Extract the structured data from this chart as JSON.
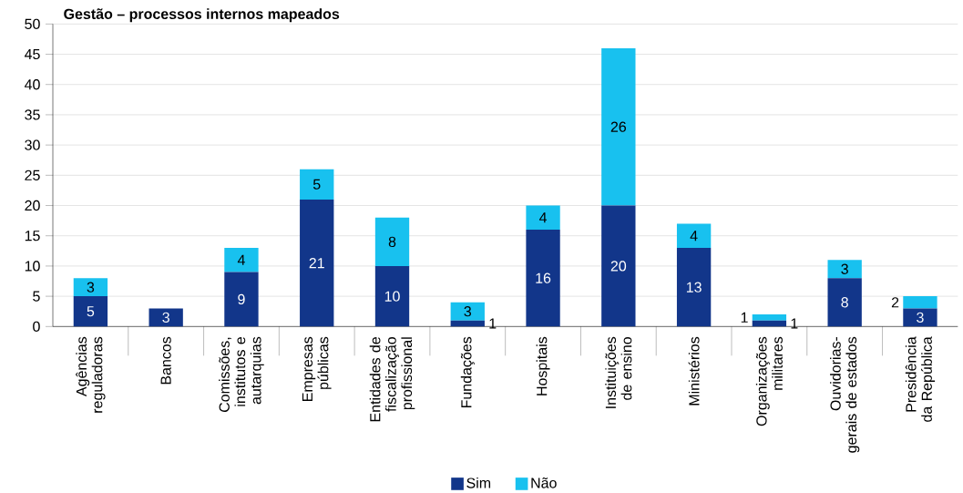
{
  "chart_data": {
    "type": "bar",
    "title": "Gestão – processos internos mapeados",
    "categories": [
      "Agências reguladoras",
      "Bancos",
      "Comissões, institutos e autarquias",
      "Empresas públicas",
      "Entidades de fiscalização profissional",
      "Fundações",
      "Hospitais",
      "Instituições de ensino",
      "Ministérios",
      "Organizações militares",
      "Ouvidorias-gerais de estados",
      "Presidência da República"
    ],
    "series": [
      {
        "name": "Sim",
        "color": "#12368a",
        "values": [
          5,
          3,
          9,
          21,
          10,
          1,
          16,
          20,
          13,
          1,
          8,
          3
        ]
      },
      {
        "name": "Não",
        "color": "#18c1ef",
        "values": [
          3,
          null,
          4,
          5,
          8,
          3,
          4,
          26,
          4,
          1,
          3,
          2
        ]
      }
    ],
    "stacked": true,
    "data_labels": true,
    "ylim": [
      0,
      50
    ],
    "yticks": [
      0,
      5,
      10,
      15,
      20,
      25,
      30,
      35,
      40,
      45,
      50
    ],
    "grid": "y",
    "legend": "bottom"
  }
}
